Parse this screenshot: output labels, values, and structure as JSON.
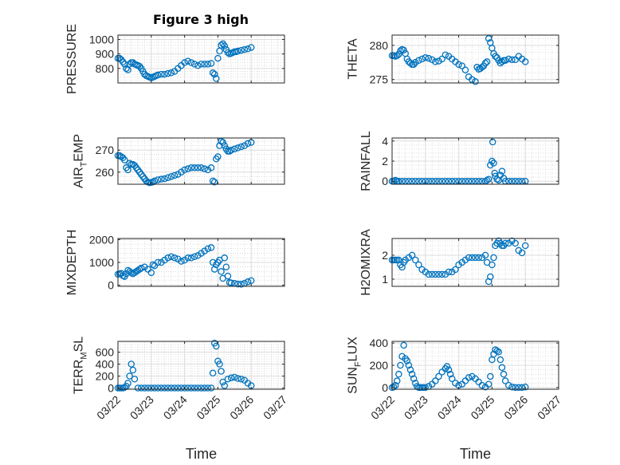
{
  "figure": {
    "title": "Figure 3 high",
    "colors": {
      "marker": "#0072bd",
      "axis": "#262626",
      "grid": "#dcdcdc",
      "minor_grid": "#c8c8c8"
    }
  },
  "chart_data": [
    {
      "type": "scatter",
      "ylabel": "PRESSURE",
      "ylim": [
        700,
        1030
      ],
      "yticks": [
        "800",
        "900",
        "1000"
      ],
      "ytick_values": [
        800,
        900,
        1000
      ],
      "xlim": [
        0,
        5
      ],
      "grid": true,
      "x": [
        0.0,
        0.05,
        0.1,
        0.15,
        0.2,
        0.25,
        0.3,
        0.35,
        0.4,
        0.45,
        0.5,
        0.55,
        0.6,
        0.65,
        0.7,
        0.75,
        0.8,
        0.85,
        0.9,
        0.95,
        1.0,
        1.05,
        1.1,
        1.15,
        1.2,
        1.3,
        1.4,
        1.5,
        1.6,
        1.7,
        1.8,
        1.9,
        2.0,
        2.1,
        2.2,
        2.3,
        2.4,
        2.5,
        2.6,
        2.7,
        2.8,
        2.85,
        2.9,
        2.95,
        3.0,
        3.05,
        3.1,
        3.15,
        3.2,
        3.25,
        3.3,
        3.35,
        3.4,
        3.45,
        3.5,
        3.55,
        3.6,
        3.7,
        3.8,
        3.9,
        4.0
      ],
      "y": [
        870,
        870,
        860,
        845,
        830,
        800,
        790,
        830,
        840,
        840,
        830,
        825,
        820,
        815,
        800,
        780,
        760,
        750,
        745,
        740,
        735,
        740,
        745,
        750,
        755,
        760,
        760,
        765,
        770,
        780,
        800,
        820,
        840,
        850,
        840,
        830,
        820,
        830,
        830,
        830,
        835,
        770,
        760,
        730,
        870,
        920,
        960,
        970,
        955,
        930,
        910,
        900,
        905,
        910,
        915,
        915,
        920,
        925,
        930,
        935,
        945
      ]
    },
    {
      "type": "scatter",
      "ylabel": "THETA",
      "ylim": [
        274.5,
        281.5
      ],
      "yticks": [
        "275",
        "280"
      ],
      "ytick_values": [
        275,
        280
      ],
      "xlim": [
        0,
        5
      ],
      "grid": true,
      "x": [
        0.0,
        0.05,
        0.1,
        0.15,
        0.2,
        0.25,
        0.3,
        0.35,
        0.4,
        0.45,
        0.5,
        0.55,
        0.6,
        0.65,
        0.7,
        0.8,
        0.9,
        1.0,
        1.1,
        1.2,
        1.3,
        1.4,
        1.5,
        1.6,
        1.7,
        1.8,
        1.9,
        2.0,
        2.1,
        2.2,
        2.3,
        2.4,
        2.5,
        2.55,
        2.6,
        2.65,
        2.7,
        2.75,
        2.8,
        2.85,
        2.9,
        2.95,
        3.0,
        3.05,
        3.1,
        3.15,
        3.2,
        3.25,
        3.3,
        3.35,
        3.4,
        3.5,
        3.6,
        3.7,
        3.8,
        3.9,
        4.0
      ],
      "y": [
        278.5,
        278.5,
        278.4,
        278.5,
        278.7,
        279.2,
        279.4,
        279.3,
        278.8,
        278.0,
        277.6,
        277.4,
        277.2,
        277.2,
        277.5,
        277.8,
        278.0,
        278.2,
        278.1,
        277.9,
        277.6,
        277.7,
        278.0,
        278.6,
        278.4,
        278.0,
        277.6,
        277.2,
        277.0,
        276.4,
        275.4,
        275.0,
        274.7,
        276.8,
        276.5,
        276.6,
        276.8,
        277.0,
        277.4,
        277.6,
        281.0,
        280.4,
        279.6,
        278.8,
        278.4,
        278.2,
        277.8,
        277.4,
        277.6,
        277.8,
        277.8,
        278.0,
        277.9,
        277.9,
        278.4,
        278.0,
        277.6
      ]
    },
    {
      "type": "scatter",
      "ylabel": "AIR_TEMP",
      "ylabel_main": "AIR",
      "ylabel_sub": "T",
      "ylabel_rest": "EMP",
      "ylim": [
        254.5,
        275.5
      ],
      "yticks": [
        "260",
        "270"
      ],
      "ytick_values": [
        260,
        270
      ],
      "xlim": [
        0,
        5
      ],
      "grid": true,
      "x": [
        0.0,
        0.05,
        0.1,
        0.15,
        0.2,
        0.25,
        0.3,
        0.35,
        0.4,
        0.45,
        0.5,
        0.55,
        0.6,
        0.65,
        0.7,
        0.75,
        0.8,
        0.85,
        0.9,
        0.95,
        1.0,
        1.05,
        1.1,
        1.2,
        1.3,
        1.4,
        1.5,
        1.6,
        1.7,
        1.8,
        1.9,
        2.0,
        2.1,
        2.2,
        2.3,
        2.4,
        2.5,
        2.6,
        2.7,
        2.8,
        2.85,
        2.9,
        2.95,
        3.0,
        3.05,
        3.1,
        3.15,
        3.2,
        3.25,
        3.3,
        3.35,
        3.4,
        3.5,
        3.6,
        3.7,
        3.8,
        3.9,
        4.0
      ],
      "y": [
        267.5,
        267.5,
        267.0,
        266.5,
        265.5,
        262.0,
        261.0,
        264.0,
        263.5,
        263.5,
        263.0,
        262.0,
        261.0,
        260.0,
        259.0,
        258.0,
        257.0,
        256.0,
        255.5,
        255.2,
        255.3,
        255.5,
        256.0,
        256.5,
        256.8,
        257.0,
        257.5,
        258.0,
        258.5,
        259.0,
        260.0,
        261.0,
        261.5,
        262.0,
        262.0,
        262.0,
        262.0,
        261.5,
        261.0,
        262.0,
        256.0,
        255.5,
        266.0,
        267.0,
        272.0,
        274.0,
        273.5,
        272.0,
        270.5,
        269.5,
        269.5,
        270.0,
        270.5,
        271.0,
        271.5,
        272.0,
        273.0,
        273.5
      ]
    },
    {
      "type": "scatter",
      "ylabel": "RAINFALL",
      "ylim": [
        -0.3,
        4.3
      ],
      "yticks": [
        "0",
        "2",
        "4"
      ],
      "ytick_values": [
        0,
        2,
        4
      ],
      "xlim": [
        0,
        5
      ],
      "grid": true,
      "x": [
        0.0,
        0.05,
        0.1,
        0.15,
        0.2,
        0.3,
        0.4,
        0.5,
        0.6,
        0.7,
        0.8,
        0.9,
        1.0,
        1.1,
        1.2,
        1.3,
        1.4,
        1.5,
        1.6,
        1.7,
        1.8,
        1.9,
        2.0,
        2.1,
        2.2,
        2.3,
        2.4,
        2.5,
        2.6,
        2.7,
        2.8,
        2.85,
        2.9,
        2.95,
        3.0,
        3.02,
        3.05,
        3.08,
        3.1,
        3.15,
        3.2,
        3.25,
        3.3,
        3.35,
        3.4,
        3.5,
        3.6,
        3.7,
        3.8,
        3.9,
        4.0
      ],
      "y": [
        0,
        0,
        0.1,
        0,
        0,
        0,
        0,
        0,
        0,
        0,
        0,
        0,
        0,
        0,
        0,
        0,
        0,
        0,
        0,
        0,
        0,
        0,
        0,
        0,
        0,
        0,
        0,
        0,
        0,
        0,
        0,
        0.1,
        0.2,
        1.6,
        2.0,
        3.9,
        1.8,
        0.8,
        0.5,
        0.2,
        0.1,
        0.6,
        1.0,
        0.3,
        0,
        0,
        0,
        0,
        0,
        0,
        0
      ]
    },
    {
      "type": "scatter",
      "ylabel": "MIXDEPTH",
      "ylim": [
        -50,
        2050
      ],
      "yticks": [
        "0",
        "1000",
        "2000"
      ],
      "ytick_values": [
        0,
        1000,
        2000
      ],
      "xlim": [
        0,
        5
      ],
      "grid": true,
      "x": [
        0.0,
        0.05,
        0.1,
        0.15,
        0.2,
        0.25,
        0.3,
        0.35,
        0.4,
        0.45,
        0.5,
        0.55,
        0.6,
        0.65,
        0.7,
        0.8,
        0.9,
        1.0,
        1.05,
        1.1,
        1.2,
        1.3,
        1.4,
        1.5,
        1.6,
        1.7,
        1.8,
        1.9,
        2.0,
        2.1,
        2.2,
        2.3,
        2.4,
        2.5,
        2.6,
        2.7,
        2.8,
        2.85,
        2.9,
        2.95,
        3.0,
        3.05,
        3.1,
        3.15,
        3.2,
        3.25,
        3.3,
        3.35,
        3.4,
        3.5,
        3.6,
        3.7,
        3.8,
        3.9,
        4.0
      ],
      "y": [
        480,
        500,
        520,
        420,
        380,
        500,
        650,
        600,
        550,
        500,
        550,
        600,
        650,
        700,
        750,
        800,
        700,
        550,
        900,
        850,
        1000,
        1000,
        1100,
        1200,
        1250,
        1200,
        1150,
        1050,
        1100,
        1200,
        1200,
        1250,
        1300,
        1400,
        1500,
        1600,
        1650,
        1000,
        700,
        900,
        1000,
        1100,
        600,
        300,
        1200,
        800,
        400,
        120,
        100,
        80,
        50,
        40,
        80,
        150,
        200
      ]
    },
    {
      "type": "scatter",
      "ylabel": "H2OMIXRA",
      "ylim": [
        0.7,
        2.7
      ],
      "yticks": [
        "1",
        "2"
      ],
      "ytick_values": [
        1,
        2
      ],
      "xlim": [
        0,
        5
      ],
      "grid": true,
      "x": [
        0.0,
        0.05,
        0.1,
        0.15,
        0.2,
        0.25,
        0.3,
        0.35,
        0.4,
        0.5,
        0.6,
        0.7,
        0.8,
        0.9,
        1.0,
        1.1,
        1.2,
        1.3,
        1.4,
        1.5,
        1.6,
        1.7,
        1.8,
        1.9,
        2.0,
        2.1,
        2.2,
        2.3,
        2.4,
        2.5,
        2.6,
        2.7,
        2.8,
        2.85,
        2.9,
        2.95,
        3.0,
        3.05,
        3.1,
        3.15,
        3.2,
        3.25,
        3.3,
        3.35,
        3.4,
        3.5,
        3.6,
        3.7,
        3.8,
        3.9,
        4.0
      ],
      "y": [
        1.8,
        1.8,
        1.8,
        1.8,
        1.8,
        1.6,
        1.5,
        1.7,
        1.8,
        1.9,
        2.0,
        1.8,
        1.6,
        1.4,
        1.3,
        1.2,
        1.2,
        1.2,
        1.2,
        1.2,
        1.2,
        1.3,
        1.3,
        1.4,
        1.6,
        1.7,
        1.8,
        1.9,
        1.9,
        1.9,
        1.9,
        1.9,
        2.0,
        1.7,
        0.9,
        1.1,
        1.6,
        1.9,
        2.4,
        2.5,
        2.6,
        2.5,
        2.4,
        2.4,
        2.5,
        2.5,
        2.6,
        2.5,
        2.2,
        2.1,
        2.4
      ]
    },
    {
      "type": "scatter",
      "ylabel": "TERR_MSL",
      "ylabel_main": "TERR",
      "ylabel_sub": "M",
      "ylabel_rest": "SL",
      "ylim": [
        -20,
        780
      ],
      "yticks": [
        "0",
        "200",
        "400",
        "600"
      ],
      "ytick_values": [
        0,
        200,
        400,
        600
      ],
      "xlim": [
        0,
        5
      ],
      "grid": true,
      "x": [
        0.0,
        0.05,
        0.1,
        0.15,
        0.2,
        0.25,
        0.3,
        0.35,
        0.4,
        0.45,
        0.5,
        0.6,
        0.7,
        0.8,
        0.9,
        1.0,
        1.1,
        1.2,
        1.3,
        1.4,
        1.5,
        1.6,
        1.7,
        1.8,
        1.9,
        2.0,
        2.1,
        2.2,
        2.3,
        2.4,
        2.5,
        2.6,
        2.7,
        2.8,
        2.85,
        2.9,
        2.95,
        3.0,
        3.05,
        3.1,
        3.15,
        3.2,
        3.3,
        3.4,
        3.5,
        3.6,
        3.7,
        3.8,
        3.9,
        4.0
      ],
      "y": [
        0,
        0,
        0,
        0,
        10,
        30,
        80,
        200,
        400,
        300,
        150,
        0,
        0,
        0,
        0,
        0,
        0,
        0,
        0,
        0,
        0,
        0,
        0,
        0,
        0,
        0,
        0,
        0,
        0,
        0,
        0,
        0,
        0,
        0,
        250,
        750,
        700,
        450,
        400,
        280,
        100,
        40,
        150,
        170,
        180,
        160,
        150,
        130,
        80,
        40
      ]
    },
    {
      "type": "scatter",
      "ylabel": "SUN_FLUX",
      "ylabel_main": "SUN",
      "ylabel_sub": "F",
      "ylabel_rest": "LUX",
      "ylim": [
        -15,
        415
      ],
      "yticks": [
        "0",
        "200",
        "400"
      ],
      "ytick_values": [
        0,
        200,
        400
      ],
      "xlim": [
        0,
        5
      ],
      "grid": true,
      "x": [
        0.0,
        0.05,
        0.1,
        0.15,
        0.2,
        0.25,
        0.3,
        0.35,
        0.4,
        0.45,
        0.5,
        0.55,
        0.6,
        0.65,
        0.7,
        0.75,
        0.8,
        0.85,
        0.9,
        0.95,
        1.0,
        1.1,
        1.2,
        1.3,
        1.4,
        1.5,
        1.6,
        1.65,
        1.7,
        1.75,
        1.8,
        1.9,
        2.0,
        2.1,
        2.2,
        2.3,
        2.4,
        2.5,
        2.6,
        2.7,
        2.8,
        2.9,
        2.95,
        3.0,
        3.05,
        3.1,
        3.15,
        3.2,
        3.25,
        3.3,
        3.35,
        3.4,
        3.5,
        3.6,
        3.7,
        3.8,
        3.9,
        4.0
      ],
      "y": [
        0,
        5,
        20,
        60,
        120,
        200,
        280,
        380,
        260,
        240,
        200,
        160,
        120,
        80,
        40,
        10,
        0,
        0,
        0,
        0,
        0,
        10,
        30,
        60,
        100,
        140,
        170,
        190,
        160,
        120,
        80,
        40,
        20,
        30,
        60,
        90,
        100,
        80,
        50,
        20,
        5,
        30,
        100,
        250,
        300,
        340,
        330,
        320,
        250,
        180,
        120,
        60,
        20,
        5,
        0,
        0,
        0,
        5
      ]
    }
  ],
  "xaxis": {
    "ticks": [
      "03/22",
      "03/23",
      "03/24",
      "03/25",
      "03/26",
      "03/27"
    ],
    "label": "Time"
  }
}
